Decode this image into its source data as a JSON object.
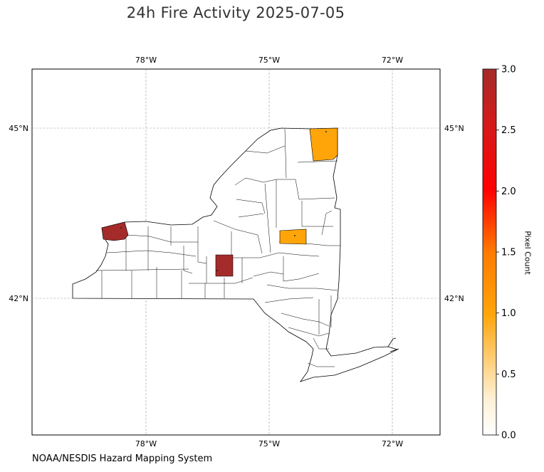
{
  "title": "24h Fire Activity 2025-07-05",
  "credit": "NOAA/NESDIS Hazard Mapping System",
  "map": {
    "region": "New York State",
    "longitude_ticks": [
      "78°W",
      "75°W",
      "72°W"
    ],
    "latitude_ticks": [
      "45°N",
      "42°N"
    ],
    "grid": true,
    "counties_with_fire": [
      {
        "location": "western shore of Lake Erie",
        "pixel_count": 3
      },
      {
        "location": "southern tier, central-west",
        "pixel_count": 3
      },
      {
        "location": "northeast corner",
        "pixel_count": 1
      },
      {
        "location": "east-central",
        "pixel_count": 1
      }
    ]
  },
  "colorbar": {
    "label": "Pixel Count",
    "range": [
      0,
      3
    ],
    "ticks": [
      "0.0",
      "0.5",
      "1.0",
      "1.5",
      "2.0",
      "2.5",
      "3.0"
    ],
    "colors": [
      "#fff8e7",
      "#ffa50a",
      "#ff0000",
      "#a52a2a"
    ]
  },
  "chart_data": {
    "type": "heatmap",
    "title": "24h Fire Activity 2025-07-05",
    "colorbar_label": "Pixel Count",
    "zlim": [
      0,
      3
    ],
    "values": [
      {
        "area": "western county (Lake Erie)",
        "value": 3
      },
      {
        "area": "southern-tier county",
        "value": 3
      },
      {
        "area": "northeast county",
        "value": 1
      },
      {
        "area": "east-central county",
        "value": 1
      }
    ]
  }
}
